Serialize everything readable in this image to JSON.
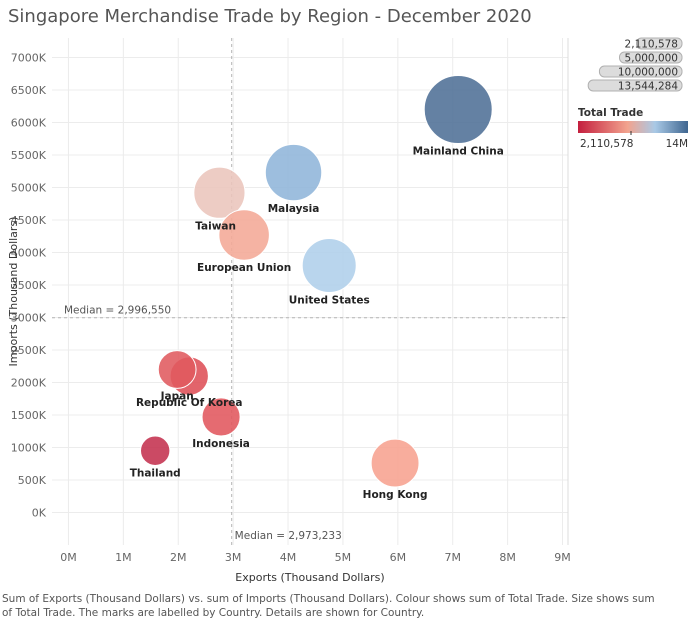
{
  "title": "Singapore Merchandise Trade by Region - December 2020",
  "caption": "Sum of Exports (Thousand Dollars) vs. sum of Imports (Thousand Dollars).  Colour shows sum of Total Trade.  Size shows sum of Total Trade.  The marks are labelled by Country.  Details are shown for Country.",
  "chart_data": {
    "type": "scatter",
    "title": "Singapore Merchandise Trade by Region - December 2020",
    "xlabel": "Exports (Thousand Dollars)",
    "ylabel": "Imports (Thousand Dollars)",
    "xlim": [
      -300000,
      9100000
    ],
    "ylim": [
      -500000,
      7300000
    ],
    "x_ticks": [
      0,
      1000000,
      2000000,
      3000000,
      4000000,
      5000000,
      6000000,
      7000000,
      8000000,
      9000000
    ],
    "x_tick_labels": [
      "0M",
      "1M",
      "2M",
      "3M",
      "4M",
      "5M",
      "6M",
      "7M",
      "8M",
      "9M"
    ],
    "y_ticks": [
      0,
      500000,
      1000000,
      1500000,
      2000000,
      2500000,
      3000000,
      3500000,
      4000000,
      4500000,
      5000000,
      5500000,
      6000000,
      6500000,
      7000000
    ],
    "y_tick_labels": [
      "0K",
      "500K",
      "1000K",
      "1500K",
      "2000K",
      "2500K",
      "3000K",
      "3500K",
      "4000K",
      "4500K",
      "5000K",
      "5500K",
      "6000K",
      "6500K",
      "7000K"
    ],
    "grid": true,
    "reference_lines": {
      "x": {
        "value": 2973233,
        "label": "Median = 2,973,233"
      },
      "y": {
        "value": 2996550,
        "label": "Median = 2,996,550"
      }
    },
    "points": [
      {
        "label": "Mainland China",
        "x": 7100000,
        "y": 6200000,
        "total_trade": 13544284,
        "color": "#4e6f96",
        "label_pos": "below"
      },
      {
        "label": "Malaysia",
        "x": 4100000,
        "y": 5230000,
        "total_trade": 9330000,
        "color": "#8fb5da",
        "label_pos": "below"
      },
      {
        "label": "Taiwan",
        "x": 2750000,
        "y": 4920000,
        "total_trade": 7670000,
        "color": "#eac5bc",
        "label_pos": "below-left"
      },
      {
        "label": "European Union",
        "x": 3200000,
        "y": 4270000,
        "total_trade": 7470000,
        "color": "#f4a996",
        "label_pos": "below"
      },
      {
        "label": "United States",
        "x": 4750000,
        "y": 3800000,
        "total_trade": 8550000,
        "color": "#afcfea",
        "label_pos": "below"
      },
      {
        "label": "Japan",
        "x": 1980000,
        "y": 2200000,
        "total_trade": 4180000,
        "color": "#e05a5f",
        "label_pos": "below"
      },
      {
        "label": "Republic Of Korea",
        "x": 2200000,
        "y": 2100000,
        "total_trade": 4300000,
        "color": "#de4f56",
        "label_pos": "below"
      },
      {
        "label": "Indonesia",
        "x": 2780000,
        "y": 1470000,
        "total_trade": 4250000,
        "color": "#e1575d",
        "label_pos": "below"
      },
      {
        "label": "Thailand",
        "x": 1580000,
        "y": 950000,
        "total_trade": 2530000,
        "color": "#c4314f",
        "label_pos": "below"
      },
      {
        "label": "Hong Kong",
        "x": 5950000,
        "y": 760000,
        "total_trade": 6710000,
        "color": "#f7a290",
        "label_pos": "below"
      }
    ],
    "size_legend": {
      "values": [
        2110578,
        5000000,
        10000000,
        13544284
      ],
      "labels": [
        "2,110,578",
        "5,000,000",
        "10,000,000",
        "13,544,284"
      ]
    },
    "color_legend": {
      "title": "Total Trade",
      "min_label": "2,110,578",
      "max_label": "14M",
      "stops": [
        "#c41f3e",
        "#f2a38e",
        "#a9c9e6",
        "#3f6690"
      ]
    }
  }
}
